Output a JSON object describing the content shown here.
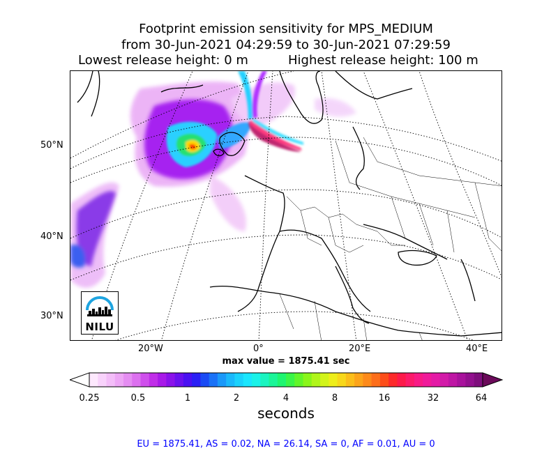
{
  "title": {
    "line1": "Footprint emission sensitivity for MPS_MEDIUM",
    "line2": "from 30-Jun-2021 04:29:59 to 30-Jun-2021 07:29:59",
    "line3_left": "Lowest release height: 0 m",
    "line3_right": "Highest release height: 100 m"
  },
  "map": {
    "lat_labels": [
      "50°N",
      "40°N",
      "30°N"
    ],
    "lon_labels": [
      "20°W",
      "0°",
      "20°E",
      "40°E"
    ],
    "logo_text": "NILU"
  },
  "max_value_text": "max value = 1875.41 sec",
  "colorbar": {
    "tick_labels": [
      "0.25",
      "0.5",
      "1",
      "2",
      "4",
      "8",
      "16",
      "32",
      "64"
    ],
    "unit": "seconds"
  },
  "stats_text": "EU = 1875.41,  AS = 0.02,  NA = 26.14,  SA = 0,  AF = 0.01,  AU = 0",
  "colors": {
    "land_outline": "#000000",
    "grid": "#000000",
    "stats_text": "#0000ff",
    "logo_arc": "#1ea4e0"
  }
}
